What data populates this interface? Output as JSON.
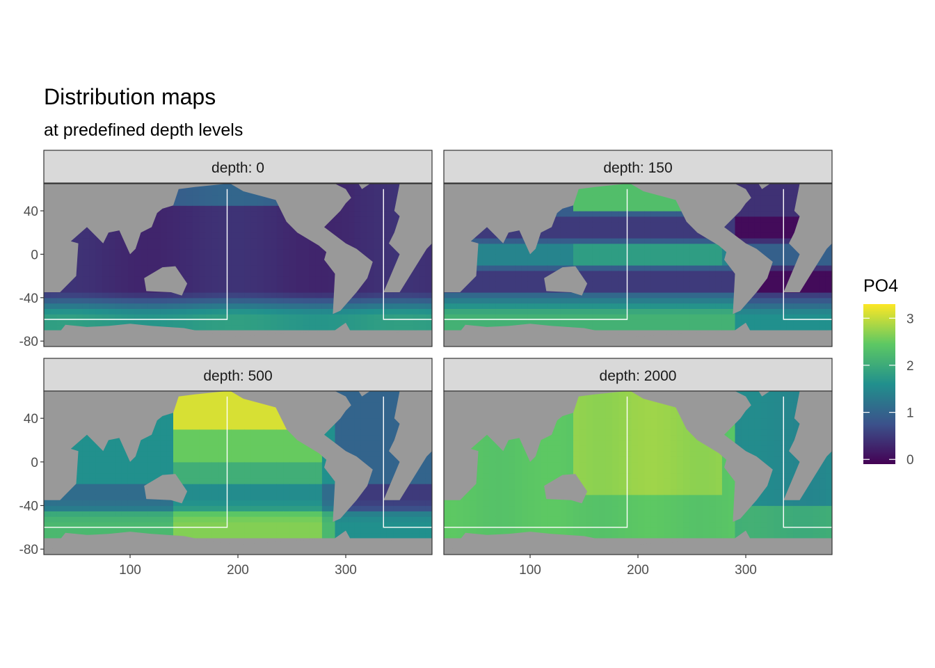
{
  "title": "Distribution maps",
  "subtitle": "at predefined depth levels",
  "chart_data": {
    "type": "heatmap",
    "variable": "PO4",
    "facet_prefix": "depth: ",
    "facets": [
      {
        "depth": 0,
        "label": "depth: 0"
      },
      {
        "depth": 150,
        "label": "depth: 150"
      },
      {
        "depth": 500,
        "label": "depth: 500"
      },
      {
        "depth": 2000,
        "label": "depth: 2000"
      }
    ],
    "x_ticks": [
      100,
      200,
      300
    ],
    "y_ticks": [
      40,
      0,
      -40,
      -80
    ],
    "xlim": [
      20,
      380
    ],
    "ylim": [
      -85,
      65
    ],
    "colorbar": {
      "title": "PO4",
      "ticks": [
        0,
        1,
        2,
        3
      ],
      "range": [
        -0.1,
        3.3
      ],
      "colors": [
        "#440154",
        "#3b528b",
        "#21908d",
        "#5dc863",
        "#fde725"
      ]
    },
    "basin_box": {
      "x_min": 20,
      "x_max": 190,
      "x2_min": 335,
      "x2_max": 380,
      "y_max": 60,
      "y_min": -60
    },
    "approx_mean_po4": {
      "depth: 0": 0.5,
      "depth: 150": 1.3,
      "depth: 500": 2.0,
      "depth: 2000": 2.4
    },
    "land_color": "#999999",
    "panel_border_color": "#333333",
    "strip_fill": "#d9d9d9"
  }
}
